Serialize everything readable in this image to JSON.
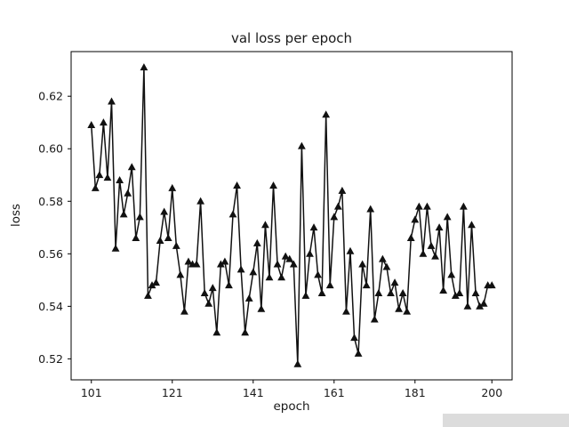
{
  "chart_data": {
    "type": "line",
    "title": "val loss per epoch",
    "xlabel": "epoch",
    "ylabel": "loss",
    "line_color": "#111111",
    "marker": "triangle-up",
    "marker_color": "#111111",
    "grid": false,
    "legend": "none",
    "xlim": [
      96,
      205
    ],
    "ylim": [
      0.512,
      0.637
    ],
    "xticks": [
      101,
      121,
      141,
      161,
      181,
      200
    ],
    "yticks": [
      0.52,
      0.54,
      0.56,
      0.58,
      0.6,
      0.62
    ],
    "epochs": [
      101,
      102,
      103,
      104,
      105,
      106,
      107,
      108,
      109,
      110,
      111,
      112,
      113,
      114,
      115,
      116,
      117,
      118,
      119,
      120,
      121,
      122,
      123,
      124,
      125,
      126,
      127,
      128,
      129,
      130,
      131,
      132,
      133,
      134,
      135,
      136,
      137,
      138,
      139,
      140,
      141,
      142,
      143,
      144,
      145,
      146,
      147,
      148,
      149,
      150,
      151,
      152,
      153,
      154,
      155,
      156,
      157,
      158,
      159,
      160,
      161,
      162,
      163,
      164,
      165,
      166,
      167,
      168,
      169,
      170,
      171,
      172,
      173,
      174,
      175,
      176,
      177,
      178,
      179,
      180,
      181,
      182,
      183,
      184,
      185,
      186,
      187,
      188,
      189,
      190,
      191,
      192,
      193,
      194,
      195,
      196,
      197,
      198,
      199,
      200
    ],
    "values": [
      0.609,
      0.585,
      0.59,
      0.61,
      0.589,
      0.618,
      0.562,
      0.588,
      0.575,
      0.583,
      0.593,
      0.566,
      0.574,
      0.631,
      0.544,
      0.548,
      0.549,
      0.565,
      0.576,
      0.566,
      0.585,
      0.563,
      0.552,
      0.538,
      0.557,
      0.556,
      0.556,
      0.58,
      0.545,
      0.541,
      0.547,
      0.53,
      0.556,
      0.557,
      0.548,
      0.575,
      0.586,
      0.554,
      0.53,
      0.543,
      0.553,
      0.564,
      0.539,
      0.571,
      0.551,
      0.586,
      0.556,
      0.551,
      0.559,
      0.558,
      0.556,
      0.518,
      0.601,
      0.544,
      0.56,
      0.57,
      0.552,
      0.545,
      0.613,
      0.548,
      0.574,
      0.578,
      0.584,
      0.538,
      0.561,
      0.528,
      0.522,
      0.556,
      0.548,
      0.577,
      0.535,
      0.545,
      0.558,
      0.555,
      0.545,
      0.549,
      0.539,
      0.545,
      0.538,
      0.566,
      0.573,
      0.578,
      0.56,
      0.578,
      0.563,
      0.559,
      0.57,
      0.546,
      0.574,
      0.552,
      0.544,
      0.545,
      0.578,
      0.54,
      0.571,
      0.545,
      0.54,
      0.541,
      0.548,
      0.548
    ]
  }
}
